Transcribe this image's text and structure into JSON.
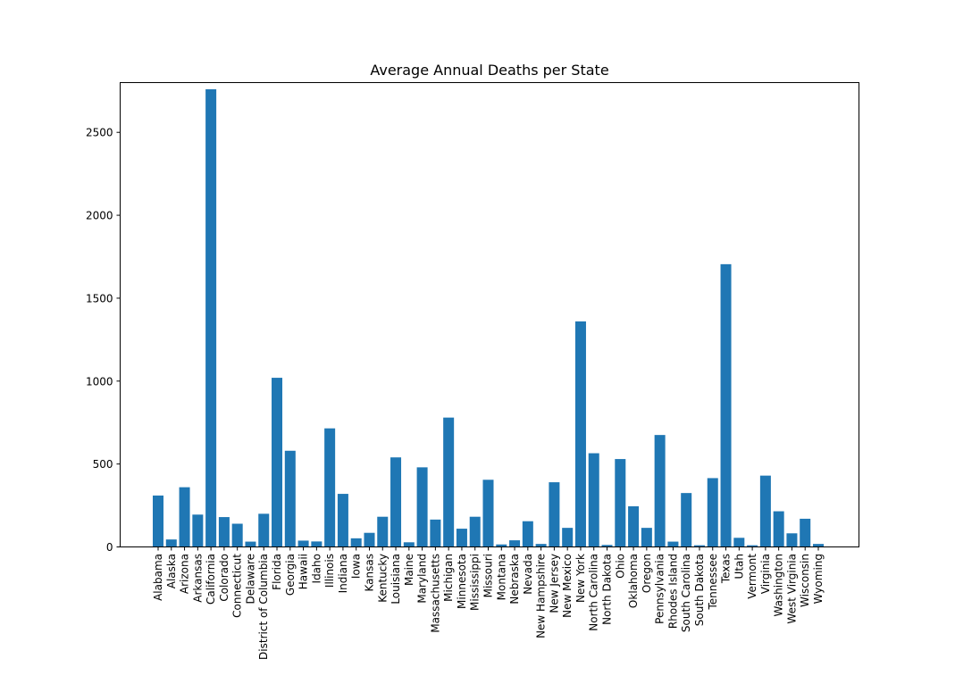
{
  "chart_data": {
    "type": "bar",
    "title": "Average Annual Deaths per State",
    "xlabel": "",
    "ylabel": "",
    "ylim": [
      0,
      2800
    ],
    "yticks": [
      0,
      500,
      1000,
      1500,
      2000,
      2500
    ],
    "bar_color": "#1f77b4",
    "categories": [
      "Alabama",
      "Alaska",
      "Arizona",
      "Arkansas",
      "California",
      "Colorado",
      "Connecticut",
      "Delaware",
      "District of Columbia",
      "Florida",
      "Georgia",
      "Hawaii",
      "Idaho",
      "Illinois",
      "Indiana",
      "Iowa",
      "Kansas",
      "Kentucky",
      "Louisiana",
      "Maine",
      "Maryland",
      "Massachusetts",
      "Michigan",
      "Minnesota",
      "Mississippi",
      "Missouri",
      "Montana",
      "Nebraska",
      "Nevada",
      "New Hampshire",
      "New Jersey",
      "New Mexico",
      "New York",
      "North Carolina",
      "North Dakota",
      "Ohio",
      "Oklahoma",
      "Oregon",
      "Pennsylvania",
      "Rhodes Island",
      "South Carolina",
      "South Dakota",
      "Tennessee",
      "Texas",
      "Utah",
      "Vermont",
      "Virginia",
      "Washington",
      "West Virginia",
      "Wisconsin",
      "Wyoming"
    ],
    "values": [
      310,
      45,
      360,
      195,
      2760,
      180,
      140,
      32,
      200,
      1020,
      580,
      38,
      33,
      715,
      320,
      52,
      85,
      182,
      540,
      28,
      480,
      165,
      780,
      110,
      182,
      405,
      15,
      40,
      155,
      18,
      390,
      115,
      1360,
      565,
      12,
      530,
      245,
      115,
      675,
      32,
      325,
      10,
      415,
      1705,
      55,
      10,
      430,
      215,
      82,
      170,
      18
    ]
  }
}
